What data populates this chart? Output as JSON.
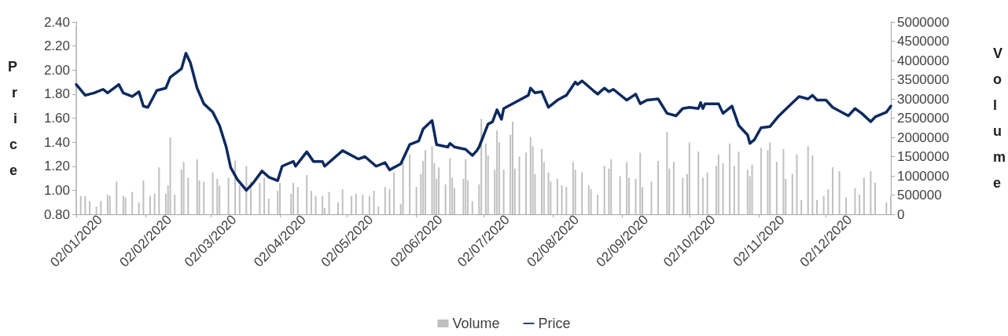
{
  "chart_data": {
    "type": "line",
    "ylabel": "Price",
    "y2label": "Volume",
    "legend": "bottom",
    "grid": false,
    "marker": "none",
    "line_style": "solid",
    "xlim": [
      "2020-01-02",
      "2020-12-31"
    ],
    "xticks": [
      {
        "value": "2020-01-02",
        "label": "02/01/2020"
      },
      {
        "value": "2020-02-02",
        "label": "02/02/2020"
      },
      {
        "value": "2020-03-02",
        "label": "02/03/2020"
      },
      {
        "value": "2020-04-02",
        "label": "02/04/2020"
      },
      {
        "value": "2020-05-02",
        "label": "02/05/2020"
      },
      {
        "value": "2020-06-02",
        "label": "02/06/2020"
      },
      {
        "value": "2020-07-02",
        "label": "02/07/2020"
      },
      {
        "value": "2020-08-02",
        "label": "02/08/2020"
      },
      {
        "value": "2020-09-02",
        "label": "02/09/2020"
      },
      {
        "value": "2020-10-02",
        "label": "02/10/2020"
      },
      {
        "value": "2020-11-02",
        "label": "02/11/2020"
      },
      {
        "value": "2020-12-02",
        "label": "02/12/2020"
      }
    ],
    "ylim": [
      0.8,
      2.4
    ],
    "yticks": [
      {
        "value": 0.8,
        "label": "0.80"
      },
      {
        "value": 1.0,
        "label": "1.00"
      },
      {
        "value": 1.2,
        "label": "1.20"
      },
      {
        "value": 1.4,
        "label": "1.40"
      },
      {
        "value": 1.6,
        "label": "1.60"
      },
      {
        "value": 1.8,
        "label": "1.80"
      },
      {
        "value": 2.0,
        "label": "2.00"
      },
      {
        "value": 2.2,
        "label": "2.20"
      },
      {
        "value": 2.4,
        "label": "2.40"
      }
    ],
    "y2lim": [
      0,
      5000000
    ],
    "y2ticks": [
      0,
      500000,
      1000000,
      1500000,
      2000000,
      2500000,
      3000000,
      3500000,
      4000000,
      4500000,
      5000000
    ],
    "series": [
      {
        "name": "Volume",
        "type": "bar",
        "axis": "y2",
        "color": "#c0c0c0",
        "x": [
          "2020-01-02",
          "2020-01-04",
          "2020-01-06",
          "2020-01-08",
          "2020-01-11",
          "2020-01-13",
          "2020-01-16",
          "2020-01-17",
          "2020-01-20",
          "2020-01-23",
          "2020-01-24",
          "2020-01-27",
          "2020-01-30",
          "2020-02-01",
          "2020-02-04",
          "2020-02-06",
          "2020-02-08",
          "2020-02-11",
          "2020-02-12",
          "2020-02-13",
          "2020-02-15",
          "2020-02-18",
          "2020-02-19",
          "2020-02-21",
          "2020-02-25",
          "2020-02-26",
          "2020-02-28",
          "2020-03-03",
          "2020-03-05",
          "2020-03-06",
          "2020-03-10",
          "2020-03-13",
          "2020-03-15",
          "2020-03-18",
          "2020-03-20",
          "2020-03-24",
          "2020-03-26",
          "2020-03-28",
          "2020-04-01",
          "2020-04-02",
          "2020-04-07",
          "2020-04-08",
          "2020-04-10",
          "2020-04-14",
          "2020-04-16",
          "2020-04-18",
          "2020-04-21",
          "2020-04-22",
          "2020-04-24",
          "2020-04-28",
          "2020-04-30",
          "2020-05-04",
          "2020-05-06",
          "2020-05-09",
          "2020-05-12",
          "2020-05-14",
          "2020-05-16",
          "2020-05-19",
          "2020-05-21",
          "2020-05-23",
          "2020-05-26",
          "2020-05-27",
          "2020-05-30",
          "2020-06-02",
          "2020-06-04",
          "2020-06-05",
          "2020-06-06",
          "2020-06-09",
          "2020-06-10",
          "2020-06-11",
          "2020-06-12",
          "2020-06-15",
          "2020-06-17",
          "2020-06-18",
          "2020-06-19",
          "2020-06-23",
          "2020-06-24",
          "2020-06-25",
          "2020-06-27",
          "2020-06-30",
          "2020-07-01",
          "2020-07-03",
          "2020-07-04",
          "2020-07-07",
          "2020-07-08",
          "2020-07-09",
          "2020-07-11",
          "2020-07-14",
          "2020-07-15",
          "2020-07-16",
          "2020-07-18",
          "2020-07-21",
          "2020-07-23",
          "2020-07-24",
          "2020-07-25",
          "2020-07-28",
          "2020-07-29",
          "2020-07-31",
          "2020-08-01",
          "2020-08-04",
          "2020-08-06",
          "2020-08-08",
          "2020-08-11",
          "2020-08-12",
          "2020-08-15",
          "2020-08-18",
          "2020-08-19",
          "2020-08-22",
          "2020-08-25",
          "2020-08-27",
          "2020-08-28",
          "2020-09-01",
          "2020-09-04",
          "2020-09-05",
          "2020-09-08",
          "2020-09-10",
          "2020-09-11",
          "2020-09-15",
          "2020-09-18",
          "2020-09-22",
          "2020-09-23",
          "2020-09-25",
          "2020-09-29",
          "2020-10-01",
          "2020-10-02",
          "2020-10-06",
          "2020-10-08",
          "2020-10-10",
          "2020-10-14",
          "2020-10-15",
          "2020-10-17",
          "2020-10-20",
          "2020-10-22",
          "2020-10-24",
          "2020-10-28",
          "2020-10-29",
          "2020-10-30",
          "2020-11-03",
          "2020-11-06",
          "2020-11-07",
          "2020-11-10",
          "2020-11-13",
          "2020-11-14",
          "2020-11-17",
          "2020-11-19",
          "2020-11-21",
          "2020-11-24",
          "2020-11-26",
          "2020-11-28",
          "2020-12-01",
          "2020-12-03",
          "2020-12-05",
          "2020-12-08",
          "2020-12-11",
          "2020-12-15",
          "2020-12-17",
          "2020-12-19",
          "2020-12-22",
          "2020-12-24",
          "2020-12-29",
          "2020-12-31"
        ],
        "values": [
          4900000,
          480000,
          480000,
          340000,
          200000,
          340000,
          510000,
          480000,
          850000,
          480000,
          440000,
          580000,
          310000,
          880000,
          480000,
          540000,
          1220000,
          540000,
          750000,
          2000000,
          510000,
          1160000,
          1360000,
          950000,
          1430000,
          880000,
          850000,
          1090000,
          920000,
          750000,
          950000,
          1390000,
          750000,
          1260000,
          850000,
          820000,
          950000,
          410000,
          610000,
          820000,
          540000,
          820000,
          710000,
          1020000,
          610000,
          480000,
          480000,
          170000,
          580000,
          310000,
          650000,
          480000,
          540000,
          510000,
          480000,
          610000,
          200000,
          710000,
          650000,
          1090000,
          270000,
          1360000,
          1560000,
          710000,
          1050000,
          1390000,
          1670000,
          1770000,
          1330000,
          920000,
          1220000,
          780000,
          1460000,
          950000,
          680000,
          920000,
          1430000,
          880000,
          340000,
          780000,
          2480000,
          1840000,
          1530000,
          1160000,
          2180000,
          1870000,
          1160000,
          2070000,
          2410000,
          1190000,
          1500000,
          1600000,
          2010000,
          1770000,
          1050000,
          1700000,
          1360000,
          1090000,
          850000,
          920000,
          750000,
          710000,
          1360000,
          1160000,
          1090000,
          750000,
          650000,
          510000,
          1260000,
          1190000,
          1430000,
          990000,
          1360000,
          950000,
          920000,
          1600000,
          710000,
          850000,
          1390000,
          2140000,
          1190000,
          1360000,
          950000,
          1050000,
          1870000,
          1630000,
          950000,
          1090000,
          1260000,
          1560000,
          1330000,
          1840000,
          1260000,
          1630000,
          1160000,
          990000,
          1290000,
          1730000,
          1670000,
          1870000,
          1360000,
          1700000,
          920000,
          1050000,
          1560000,
          370000,
          1770000,
          1530000,
          370000,
          480000,
          650000,
          1220000,
          1120000,
          440000,
          680000,
          510000,
          950000,
          1120000,
          820000,
          310000,
          480000
        ]
      },
      {
        "name": "Price",
        "color": "#0d2a5e",
        "x": [
          "2020-01-02",
          "2020-01-06",
          "2020-01-10",
          "2020-01-14",
          "2020-01-16",
          "2020-01-21",
          "2020-01-23",
          "2020-01-27",
          "2020-01-30",
          "2020-02-01",
          "2020-02-03",
          "2020-02-07",
          "2020-02-11",
          "2020-02-13",
          "2020-02-18",
          "2020-02-20",
          "2020-02-22",
          "2020-02-25",
          "2020-02-28",
          "2020-03-03",
          "2020-03-06",
          "2020-03-09",
          "2020-03-11",
          "2020-03-14",
          "2020-03-18",
          "2020-03-21",
          "2020-03-25",
          "2020-03-28",
          "2020-04-01",
          "2020-04-03",
          "2020-04-08",
          "2020-04-09",
          "2020-04-14",
          "2020-04-17",
          "2020-04-21",
          "2020-04-22",
          "2020-04-30",
          "2020-05-07",
          "2020-05-10",
          "2020-05-15",
          "2020-05-19",
          "2020-05-21",
          "2020-05-26",
          "2020-05-30",
          "2020-06-03",
          "2020-06-05",
          "2020-06-09",
          "2020-06-11",
          "2020-06-16",
          "2020-06-17",
          "2020-06-19",
          "2020-06-24",
          "2020-06-27",
          "2020-06-29",
          "2020-06-30",
          "2020-07-04",
          "2020-07-06",
          "2020-07-08",
          "2020-07-10",
          "2020-07-11",
          "2020-07-18",
          "2020-07-22",
          "2020-07-23",
          "2020-07-25",
          "2020-07-28",
          "2020-07-31",
          "2020-08-04",
          "2020-08-08",
          "2020-08-12",
          "2020-08-13",
          "2020-08-15",
          "2020-08-20",
          "2020-08-22",
          "2020-08-25",
          "2020-08-27",
          "2020-08-29",
          "2020-09-04",
          "2020-09-08",
          "2020-09-10",
          "2020-09-13",
          "2020-09-18",
          "2020-09-22",
          "2020-09-26",
          "2020-09-29",
          "2020-10-02",
          "2020-10-06",
          "2020-10-07",
          "2020-10-08",
          "2020-10-09",
          "2020-10-15",
          "2020-10-17",
          "2020-10-21",
          "2020-10-24",
          "2020-10-28",
          "2020-10-29",
          "2020-10-31",
          "2020-11-03",
          "2020-11-07",
          "2020-11-11",
          "2020-11-16",
          "2020-11-20",
          "2020-11-24",
          "2020-11-26",
          "2020-11-28",
          "2020-12-02",
          "2020-12-05",
          "2020-12-12",
          "2020-12-15",
          "2020-12-18",
          "2020-12-22",
          "2020-12-24",
          "2020-12-29",
          "2020-12-31"
        ],
        "values": [
          1.88,
          1.79,
          1.81,
          1.84,
          1.81,
          1.88,
          1.81,
          1.78,
          1.82,
          1.7,
          1.69,
          1.83,
          1.85,
          1.94,
          2.01,
          2.14,
          2.06,
          1.85,
          1.72,
          1.65,
          1.54,
          1.36,
          1.19,
          1.09,
          1.0,
          1.06,
          1.16,
          1.11,
          1.08,
          1.2,
          1.24,
          1.2,
          1.32,
          1.24,
          1.24,
          1.2,
          1.33,
          1.26,
          1.28,
          1.2,
          1.23,
          1.17,
          1.22,
          1.38,
          1.41,
          1.51,
          1.58,
          1.38,
          1.36,
          1.39,
          1.36,
          1.34,
          1.29,
          1.33,
          1.36,
          1.55,
          1.57,
          1.67,
          1.59,
          1.68,
          1.75,
          1.79,
          1.85,
          1.81,
          1.82,
          1.69,
          1.75,
          1.79,
          1.9,
          1.88,
          1.91,
          1.83,
          1.8,
          1.85,
          1.82,
          1.84,
          1.75,
          1.8,
          1.72,
          1.75,
          1.76,
          1.64,
          1.62,
          1.68,
          1.69,
          1.68,
          1.73,
          1.68,
          1.72,
          1.72,
          1.64,
          1.7,
          1.54,
          1.46,
          1.39,
          1.42,
          1.52,
          1.53,
          1.62,
          1.71,
          1.78,
          1.76,
          1.79,
          1.75,
          1.75,
          1.69,
          1.62,
          1.68,
          1.64,
          1.57,
          1.61,
          1.65,
          1.7
        ]
      }
    ]
  }
}
